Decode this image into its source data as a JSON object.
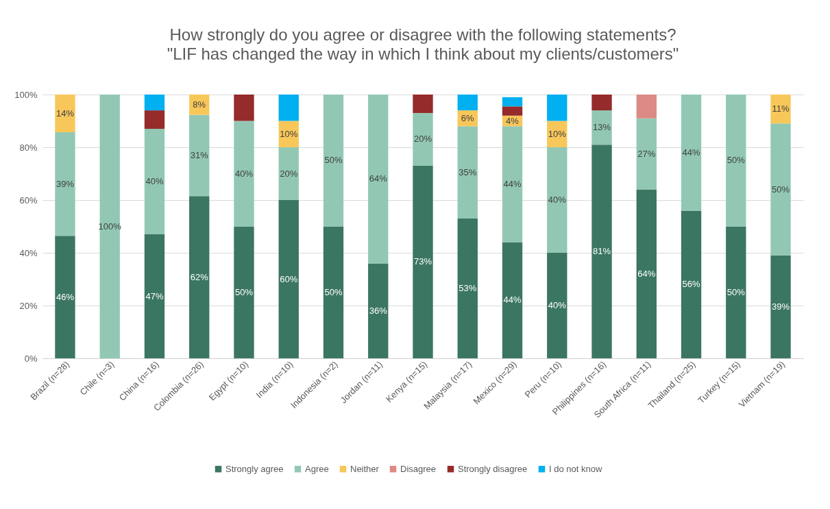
{
  "chart_data": {
    "type": "bar",
    "stacked": true,
    "title": "How strongly do you agree or disagree with the following statements?",
    "subtitle": "\"LIF has changed the way in which I think about my clients/customers\"",
    "categories": [
      "Brazil (n=28)",
      "Chile (n=3)",
      "China (n=16)",
      "Colombia (n=26)",
      "Egypt (n=10)",
      "India (n=10)",
      "Indonesia (n=2)",
      "Jordan (n=11)",
      "Kenya (n=15)",
      "Malaysia (n=17)",
      "Mexico (n=29)",
      "Peru (n=10)",
      "Philippines (n=16)",
      "South Africa (n=11)",
      "Thailand (n=25)",
      "Turkey (n=15)",
      "Vietnam (n=19)"
    ],
    "series": [
      {
        "name": "Strongly agree",
        "color": "#3b7662",
        "values": [
          46.4,
          null,
          47,
          61.5,
          50,
          60,
          50,
          36,
          73,
          53,
          44,
          40,
          81,
          64,
          56,
          50,
          39
        ],
        "value_labels": [
          "46%",
          null,
          "47%",
          "62%",
          "50%",
          "60%",
          "50%",
          "36%",
          "73%",
          "53%",
          "44%",
          "40%",
          "81%",
          "64%",
          "56%",
          "50%",
          "39%"
        ]
      },
      {
        "name": "Agree",
        "color": "#92c8b3",
        "values": [
          39.3,
          100,
          40,
          30.8,
          40,
          20,
          50,
          64,
          20,
          35,
          44,
          40,
          13,
          27,
          44,
          50,
          50
        ],
        "value_labels": [
          "39%",
          "100%",
          "40%",
          "31%",
          "40%",
          "20%",
          "50%",
          "64%",
          "20%",
          "35%",
          "44%",
          "40%",
          "13%",
          "27%",
          "44%",
          "50%",
          "50%"
        ]
      },
      {
        "name": "Neither",
        "color": "#f8c75a",
        "values": [
          14.3,
          null,
          null,
          7.7,
          null,
          10,
          null,
          null,
          null,
          6,
          4,
          10,
          null,
          null,
          null,
          null,
          11
        ],
        "value_labels": [
          "14%",
          null,
          null,
          "8%",
          null,
          "10%",
          null,
          null,
          null,
          "6%",
          "4%",
          "10%",
          null,
          null,
          null,
          null,
          "11%"
        ]
      },
      {
        "name": "Disagree",
        "color": "#dc8a86",
        "values": [
          null,
          null,
          null,
          null,
          null,
          null,
          null,
          null,
          null,
          null,
          null,
          null,
          null,
          9,
          null,
          null,
          null
        ]
      },
      {
        "name": "Strongly disagree",
        "color": "#952b2b",
        "values": [
          null,
          null,
          7,
          null,
          10,
          null,
          null,
          null,
          7,
          null,
          3.5,
          null,
          6,
          null,
          null,
          null,
          null
        ]
      },
      {
        "name": "I do not know",
        "color": "#00b0f0",
        "values": [
          null,
          null,
          6,
          null,
          null,
          10,
          null,
          null,
          null,
          6,
          3.5,
          10,
          null,
          null,
          null,
          null,
          null
        ]
      }
    ],
    "ylim": [
      0,
      100
    ],
    "yticks": [
      {
        "value": 0,
        "label": "0%"
      },
      {
        "value": 20,
        "label": "20%"
      },
      {
        "value": 40,
        "label": "40%"
      },
      {
        "value": 60,
        "label": "60%"
      },
      {
        "value": 80,
        "label": "80%"
      },
      {
        "value": 100,
        "label": "100%"
      }
    ],
    "grid": "y",
    "legend": "bottom"
  }
}
